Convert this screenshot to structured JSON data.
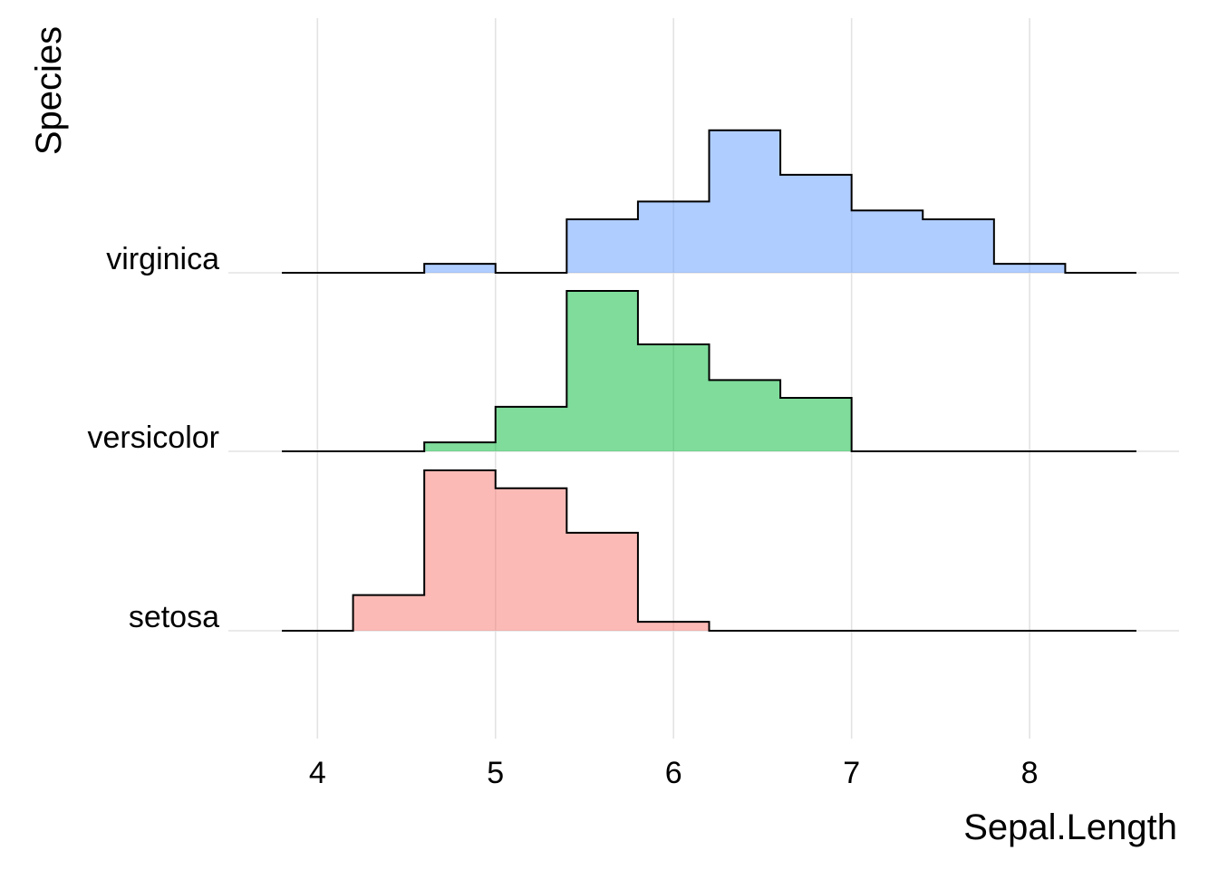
{
  "chart_data": {
    "type": "ridgeline-histogram",
    "xlabel": "Sepal.Length",
    "ylabel": "Species",
    "xlim": [
      3.8,
      8.6
    ],
    "x_ticks": [
      4,
      5,
      6,
      7,
      8
    ],
    "x_tick_labels": [
      "4",
      "5",
      "6",
      "7",
      "8"
    ],
    "grid": "on",
    "legend": "none",
    "bin_edges": [
      3.8,
      4.2,
      4.6,
      5.0,
      5.4,
      5.8,
      6.2,
      6.6,
      7.0,
      7.4,
      7.8,
      8.2,
      8.6
    ],
    "categories": [
      "setosa",
      "versicolor",
      "virginica"
    ],
    "series": [
      {
        "name": "setosa",
        "color": "#F8766D",
        "counts": [
          0,
          4,
          18,
          16,
          11,
          1,
          0,
          0,
          0,
          0,
          0,
          0
        ]
      },
      {
        "name": "versicolor",
        "color": "#00BA38",
        "counts": [
          0,
          0,
          1,
          5,
          18,
          12,
          8,
          6,
          0,
          0,
          0,
          0
        ]
      },
      {
        "name": "virginica",
        "color": "#619CFF",
        "counts": [
          0,
          0,
          1,
          0,
          6,
          8,
          16,
          11,
          7,
          6,
          1,
          0
        ]
      }
    ]
  }
}
